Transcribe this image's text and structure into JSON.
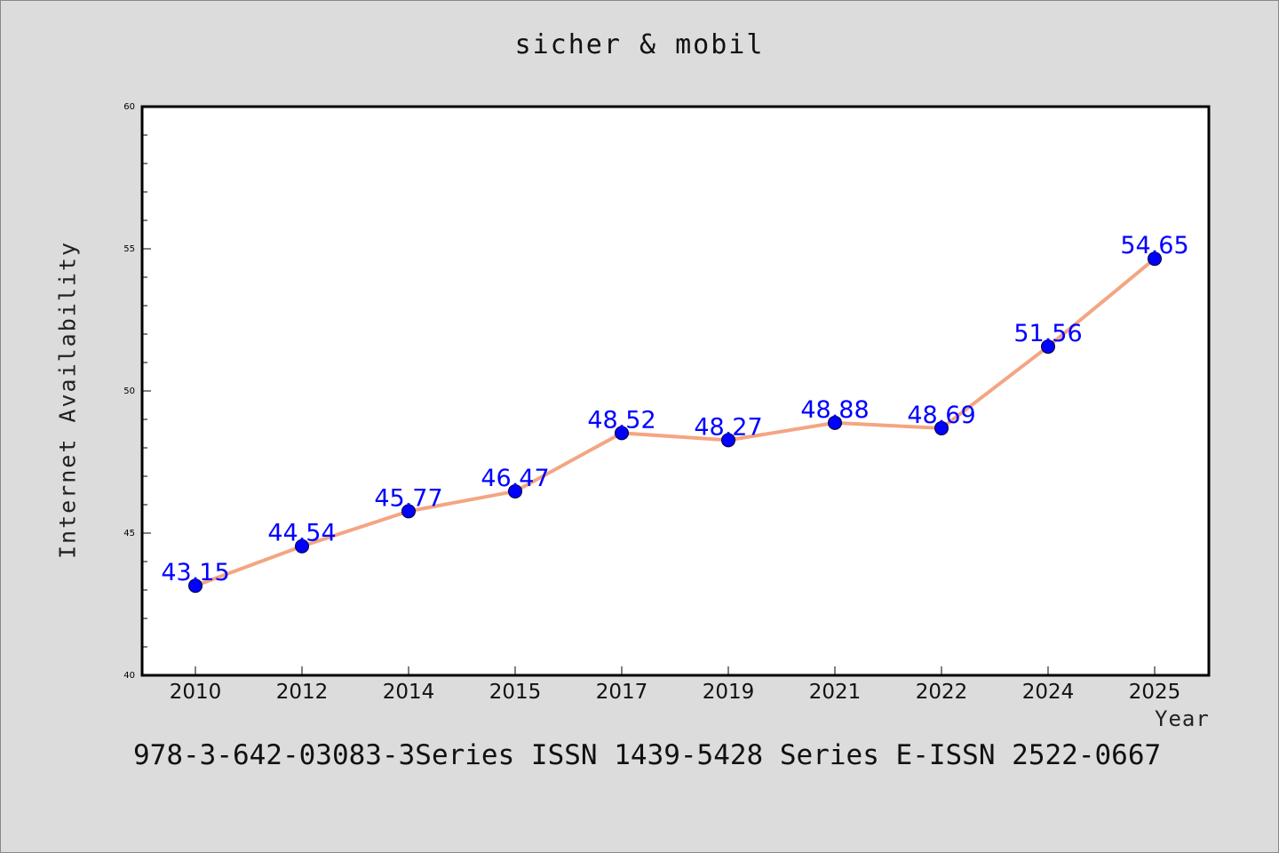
{
  "title": "sicher & mobil",
  "footer": "978-3-642-03083-3Series ISSN 1439-5428 Series E-ISSN 2522-0667",
  "chart_data": {
    "type": "line",
    "categories": [
      "2010",
      "2012",
      "2014",
      "2015",
      "2017",
      "2019",
      "2021",
      "2022",
      "2024",
      "2025"
    ],
    "series": [
      {
        "values": [
          43.15,
          44.54,
          45.77,
          46.47,
          48.52,
          48.27,
          48.88,
          48.69,
          51.56,
          54.65
        ],
        "line_color": "#f4a582",
        "marker_color": "#0000ff",
        "label_color": "#0000ff"
      }
    ],
    "xlabel": "Year",
    "ylabel": "Internet Availability",
    "ylim": [
      40,
      60
    ],
    "yticks": [
      40,
      45,
      50,
      55,
      60
    ],
    "grid": false,
    "data_labels": [
      "43.15",
      "44.54",
      "45.77",
      "46.47",
      "48.52",
      "48.27",
      "48.88",
      "48.69",
      "51.56",
      "54.65"
    ]
  }
}
